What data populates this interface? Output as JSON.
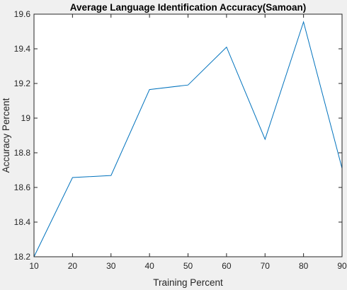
{
  "chart_data": {
    "type": "line",
    "title": "Average Language Identification Accuracy(Samoan)",
    "xlabel": "Training Percent",
    "ylabel": "Accuracy Percent",
    "x": [
      10,
      20,
      30,
      40,
      50,
      60,
      70,
      80,
      90
    ],
    "series": [
      {
        "values": [
          18.2,
          18.657,
          18.669,
          19.165,
          19.191,
          19.41,
          18.878,
          19.555,
          18.71
        ]
      }
    ],
    "xlim": [
      10,
      90
    ],
    "ylim": [
      18.2,
      19.6
    ],
    "xticks": [
      10,
      20,
      30,
      40,
      50,
      60,
      70,
      80,
      90
    ],
    "xtick_labels": [
      "10",
      "20",
      "30",
      "40",
      "50",
      "60",
      "70",
      "80",
      "90"
    ],
    "yticks": [
      18.2,
      18.4,
      18.6,
      18.8,
      19.0,
      19.2,
      19.4,
      19.6
    ],
    "ytick_labels": [
      "18.2",
      "18.4",
      "18.6",
      "18.8",
      "19",
      "19.2",
      "19.4",
      "19.6"
    ],
    "grid": false,
    "legend": "none",
    "colors": {
      "figure_background": "#f0f0f0",
      "axes_background": "#ffffff",
      "axes_color": "#262626",
      "line": "#0072bd"
    }
  }
}
